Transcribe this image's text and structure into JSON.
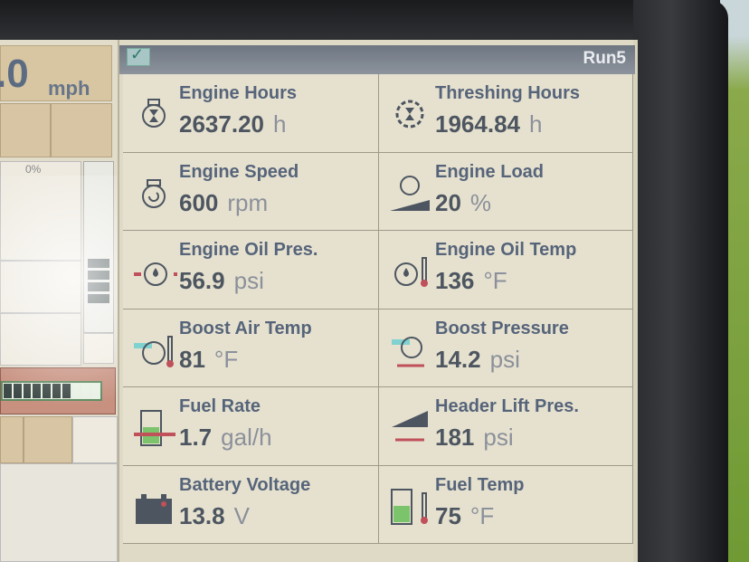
{
  "left_panel": {
    "speed_value": ".0",
    "speed_unit": "mph",
    "tank_percent": "0%"
  },
  "header": {
    "title": "Run5",
    "status_icon": "check-icon"
  },
  "tiles": [
    {
      "label": "Engine Hours",
      "value": "2637.20",
      "unit": "h",
      "icon": "engine-hourglass-icon"
    },
    {
      "label": "Threshing Hours",
      "value": "1964.84",
      "unit": "h",
      "icon": "rotor-hourglass-icon"
    },
    {
      "label": "Engine Speed",
      "value": "600",
      "unit": "rpm",
      "icon": "engine-rotation-icon"
    },
    {
      "label": "Engine Load",
      "value": "20",
      "unit": "%",
      "icon": "engine-load-icon"
    },
    {
      "label": "Engine Oil Pres.",
      "value": "56.9",
      "unit": "psi",
      "icon": "oil-pressure-icon"
    },
    {
      "label": "Engine Oil Temp",
      "value": "136",
      "unit": "°F",
      "icon": "oil-temp-icon"
    },
    {
      "label": "Boost Air Temp",
      "value": "81",
      "unit": "°F",
      "icon": "boost-air-temp-icon"
    },
    {
      "label": "Boost Pressure",
      "value": "14.2",
      "unit": "psi",
      "icon": "boost-pressure-icon"
    },
    {
      "label": "Fuel Rate",
      "value": "1.7",
      "unit": "gal/h",
      "icon": "fuel-rate-icon"
    },
    {
      "label": "Header Lift Pres.",
      "value": "181",
      "unit": "psi",
      "icon": "header-lift-icon"
    },
    {
      "label": "Battery Voltage",
      "value": "13.8",
      "unit": "V",
      "icon": "battery-icon"
    },
    {
      "label": "Fuel Temp",
      "value": "75",
      "unit": "°F",
      "icon": "fuel-temp-icon"
    }
  ],
  "colors": {
    "label": "#56647a",
    "accent_red": "#c0505a",
    "fuel_green": "#7cc46c",
    "boost_cyan": "#7fd2d0"
  }
}
